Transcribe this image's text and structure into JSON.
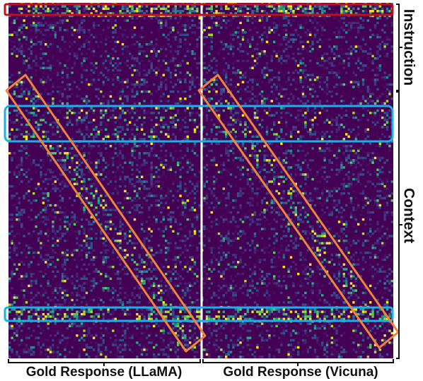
{
  "chart_data": {
    "type": "heatmap",
    "colormap": "viridis",
    "colors": {
      "background": "#440154",
      "instruction_box": "#c0101e",
      "context_box": "#1ab0e8",
      "diagonal_box": "#f0843c",
      "divider": "#ffffff",
      "bracket": "#111111"
    },
    "panels": [
      {
        "label": "Gold Response (LLaMA)"
      },
      {
        "label": "Gold Response (Vicuna)"
      }
    ],
    "y_labels": {
      "instruction": "Instruction",
      "context": "Context"
    },
    "xlabel": "",
    "ylabel": "",
    "grid": false,
    "legend": "none"
  }
}
